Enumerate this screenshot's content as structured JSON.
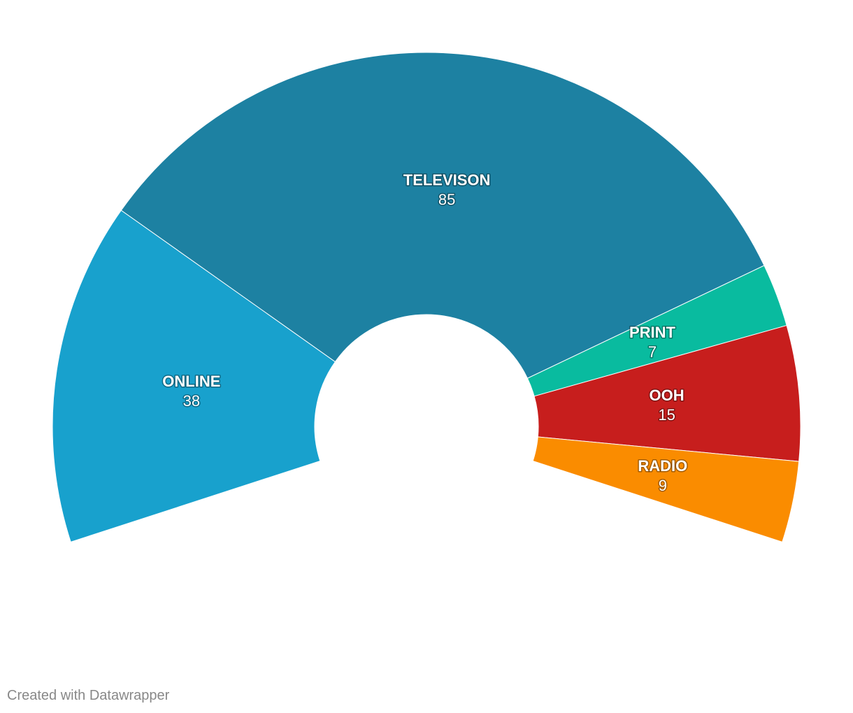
{
  "chart_data": {
    "type": "pie",
    "variant": "semi-donut",
    "slices": [
      {
        "label": "ONLINE",
        "value": 38,
        "color": "#18a1cd"
      },
      {
        "label": "TELEVISON",
        "value": 85,
        "color": "#1d81a2"
      },
      {
        "label": "PRINT",
        "value": 7,
        "color": "#09bb9f"
      },
      {
        "label": "OOH",
        "value": 15,
        "color": "#c71e1d"
      },
      {
        "label": "RADIO",
        "value": 9,
        "color": "#fa8c00"
      }
    ]
  },
  "footer": {
    "credit": "Created with Datawrapper"
  }
}
